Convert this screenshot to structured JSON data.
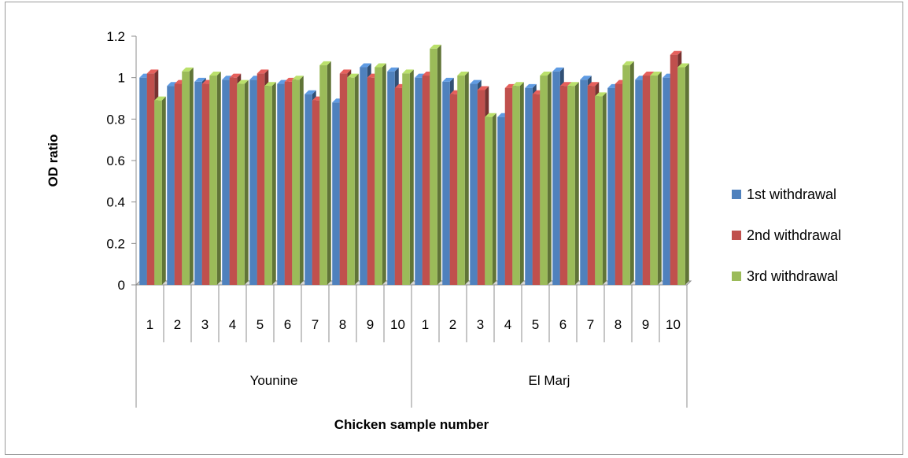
{
  "chart_data": {
    "type": "bar",
    "style": "3d-clustered-column",
    "xlabel": "Chicken sample number",
    "ylabel": "OD ratio",
    "ylim": [
      0,
      1.2
    ],
    "yticks": [
      "0",
      "0.2",
      "0.4",
      "0.6",
      "0.8",
      "1",
      "1.2"
    ],
    "grid": false,
    "legend_position": "right",
    "groups": [
      {
        "name": "Younine",
        "categories": [
          "1",
          "2",
          "3",
          "4",
          "5",
          "6",
          "7",
          "8",
          "9",
          "10"
        ]
      },
      {
        "name": "El Marj",
        "categories": [
          "1",
          "2",
          "3",
          "4",
          "5",
          "6",
          "7",
          "8",
          "9",
          "10"
        ]
      }
    ],
    "series": [
      {
        "name": "1st withdrawal",
        "color": "#4F81BD",
        "values": [
          1.0,
          0.96,
          0.98,
          0.99,
          0.99,
          0.97,
          0.92,
          0.88,
          1.05,
          1.03,
          1.0,
          0.98,
          0.97,
          0.81,
          0.95,
          1.03,
          0.99,
          0.95,
          0.99,
          1.0
        ]
      },
      {
        "name": "2nd withdrawal",
        "color": "#C0504D",
        "values": [
          1.02,
          0.97,
          0.97,
          1.0,
          1.02,
          0.98,
          0.89,
          1.02,
          1.0,
          0.95,
          1.01,
          0.92,
          0.94,
          0.95,
          0.92,
          0.96,
          0.96,
          0.97,
          1.01,
          1.11
        ]
      },
      {
        "name": "3rd withdrawal",
        "color": "#9BBB59",
        "values": [
          0.89,
          1.03,
          1.01,
          0.97,
          0.96,
          0.99,
          1.06,
          1.0,
          1.05,
          1.02,
          1.14,
          1.01,
          0.81,
          0.96,
          1.01,
          0.96,
          0.91,
          1.06,
          1.01,
          1.05
        ]
      }
    ]
  }
}
